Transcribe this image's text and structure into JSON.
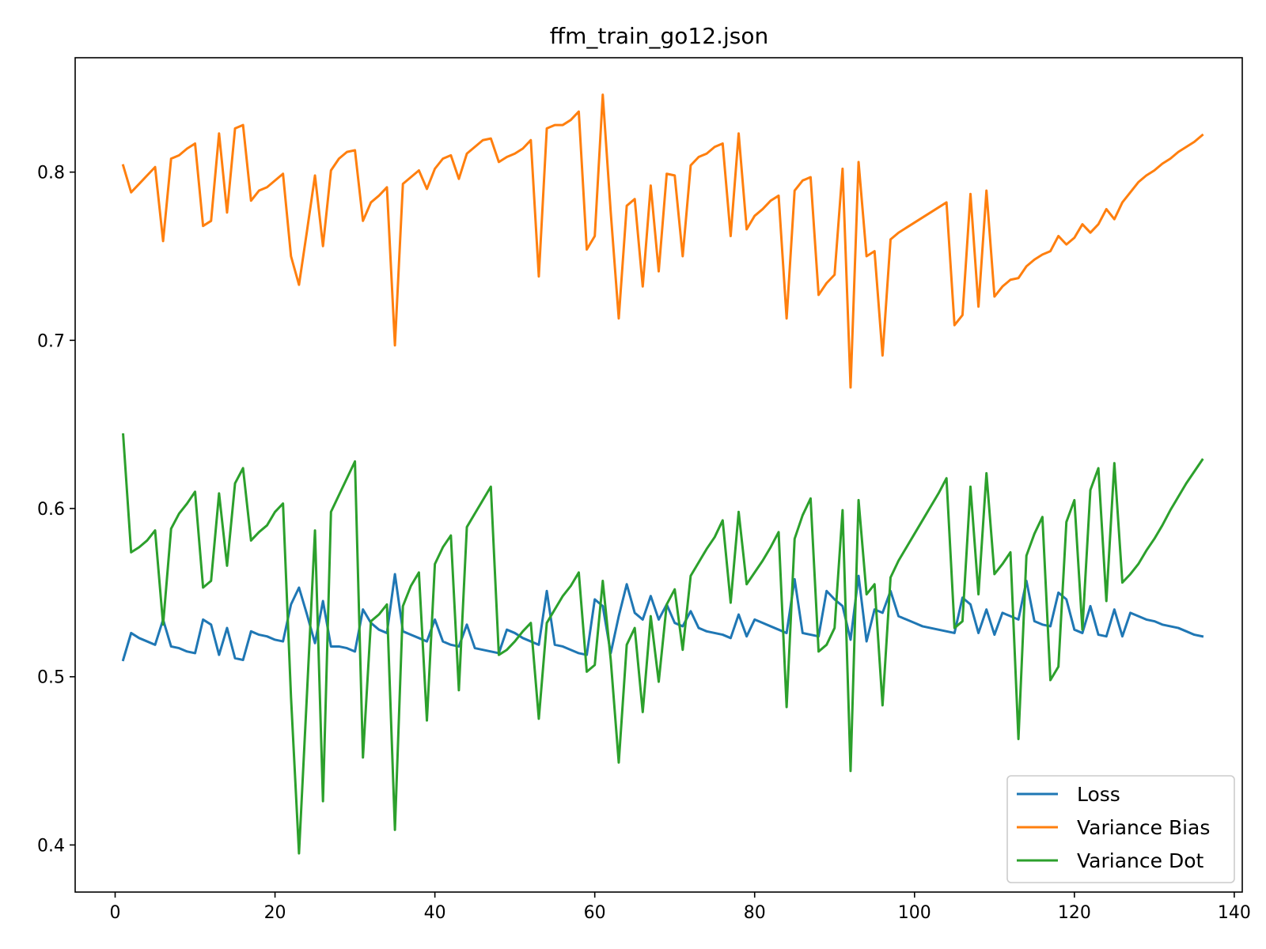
{
  "chart_data": {
    "type": "line",
    "title": "ffm_train_go12.json",
    "xlabel": "",
    "ylabel": "",
    "xlim": [
      -5,
      141
    ],
    "ylim": [
      0.372,
      0.868
    ],
    "xticks": [
      0,
      20,
      40,
      60,
      80,
      100,
      120,
      140
    ],
    "yticks": [
      0.4,
      0.5,
      0.6,
      0.7,
      0.8
    ],
    "x_start": 1,
    "x_step": 1,
    "grid": false,
    "legend_position": "lower right",
    "series": [
      {
        "name": "Loss",
        "color": "#1f77b4",
        "values": [
          0.51,
          0.526,
          0.523,
          0.521,
          0.519,
          0.534,
          0.518,
          0.517,
          0.515,
          0.514,
          0.534,
          0.531,
          0.513,
          0.529,
          0.511,
          0.51,
          0.527,
          0.525,
          0.524,
          0.522,
          0.521,
          0.543,
          0.553,
          0.537,
          0.52,
          0.545,
          0.518,
          0.518,
          0.517,
          0.515,
          0.54,
          0.532,
          0.528,
          0.526,
          0.561,
          0.527,
          0.525,
          0.523,
          0.521,
          0.534,
          0.521,
          0.519,
          0.518,
          0.531,
          0.517,
          0.516,
          0.515,
          0.514,
          0.528,
          0.526,
          0.523,
          0.521,
          0.519,
          0.551,
          0.519,
          0.518,
          0.516,
          0.514,
          0.513,
          0.546,
          0.542,
          0.514,
          0.536,
          0.555,
          0.538,
          0.534,
          0.548,
          0.534,
          0.543,
          0.532,
          0.53,
          0.539,
          0.529,
          0.527,
          0.526,
          0.525,
          0.523,
          0.537,
          0.524,
          0.534,
          0.532,
          0.53,
          0.528,
          0.526,
          0.558,
          0.526,
          0.525,
          0.524,
          0.551,
          0.546,
          0.542,
          0.522,
          0.56,
          0.521,
          0.54,
          0.538,
          0.551,
          0.536,
          0.534,
          0.532,
          0.53,
          0.529,
          0.528,
          0.527,
          0.526,
          0.547,
          0.543,
          0.526,
          0.54,
          0.525,
          0.538,
          0.536,
          0.534,
          0.557,
          0.533,
          0.531,
          0.53,
          0.55,
          0.546,
          0.528,
          0.526,
          0.542,
          0.525,
          0.524,
          0.54,
          0.524,
          0.538,
          0.536,
          0.534,
          0.533,
          0.531,
          0.53,
          0.529,
          0.527,
          0.525,
          0.524
        ]
      },
      {
        "name": "Variance Bias",
        "color": "#ff7f0e",
        "values": [
          0.804,
          0.788,
          0.793,
          0.798,
          0.803,
          0.759,
          0.808,
          0.81,
          0.814,
          0.817,
          0.768,
          0.771,
          0.823,
          0.776,
          0.826,
          0.828,
          0.783,
          0.789,
          0.791,
          0.795,
          0.799,
          0.75,
          0.733,
          0.765,
          0.798,
          0.756,
          0.801,
          0.808,
          0.812,
          0.813,
          0.771,
          0.782,
          0.786,
          0.791,
          0.697,
          0.793,
          0.797,
          0.801,
          0.79,
          0.802,
          0.808,
          0.81,
          0.796,
          0.811,
          0.815,
          0.819,
          0.82,
          0.806,
          0.809,
          0.811,
          0.814,
          0.819,
          0.738,
          0.826,
          0.828,
          0.828,
          0.831,
          0.836,
          0.754,
          0.762,
          0.846,
          0.776,
          0.713,
          0.78,
          0.784,
          0.732,
          0.792,
          0.741,
          0.799,
          0.798,
          0.75,
          0.804,
          0.809,
          0.811,
          0.815,
          0.817,
          0.762,
          0.823,
          0.766,
          0.774,
          0.778,
          0.783,
          0.786,
          0.713,
          0.789,
          0.795,
          0.797,
          0.727,
          0.734,
          0.739,
          0.802,
          0.672,
          0.806,
          0.75,
          0.753,
          0.691,
          0.76,
          0.764,
          0.767,
          0.77,
          0.773,
          0.776,
          0.779,
          0.782,
          0.709,
          0.715,
          0.787,
          0.72,
          0.789,
          0.726,
          0.732,
          0.736,
          0.737,
          0.744,
          0.748,
          0.751,
          0.753,
          0.762,
          0.757,
          0.761,
          0.769,
          0.764,
          0.769,
          0.778,
          0.772,
          0.782,
          0.788,
          0.794,
          0.798,
          0.801,
          0.805,
          0.808,
          0.812,
          0.815,
          0.818,
          0.822
        ]
      },
      {
        "name": "Variance Dot",
        "color": "#2ca02c",
        "values": [
          0.644,
          0.574,
          0.577,
          0.581,
          0.587,
          0.531,
          0.588,
          0.597,
          0.603,
          0.61,
          0.553,
          0.557,
          0.609,
          0.566,
          0.615,
          0.624,
          0.581,
          0.586,
          0.59,
          0.598,
          0.603,
          0.488,
          0.395,
          0.49,
          0.587,
          0.426,
          0.598,
          0.608,
          0.618,
          0.628,
          0.452,
          0.533,
          0.537,
          0.543,
          0.409,
          0.542,
          0.554,
          0.562,
          0.474,
          0.567,
          0.577,
          0.584,
          0.492,
          0.589,
          0.597,
          0.605,
          0.613,
          0.513,
          0.516,
          0.521,
          0.527,
          0.532,
          0.475,
          0.532,
          0.54,
          0.548,
          0.554,
          0.562,
          0.503,
          0.507,
          0.557,
          0.51,
          0.449,
          0.519,
          0.529,
          0.479,
          0.536,
          0.497,
          0.543,
          0.552,
          0.516,
          0.56,
          0.568,
          0.576,
          0.583,
          0.593,
          0.544,
          0.598,
          0.555,
          0.562,
          0.569,
          0.577,
          0.586,
          0.482,
          0.582,
          0.596,
          0.606,
          0.515,
          0.519,
          0.529,
          0.599,
          0.444,
          0.605,
          0.549,
          0.555,
          0.483,
          0.559,
          0.569,
          0.577,
          0.585,
          0.593,
          0.601,
          0.609,
          0.618,
          0.529,
          0.533,
          0.613,
          0.549,
          0.621,
          0.561,
          0.567,
          0.574,
          0.463,
          0.572,
          0.585,
          0.595,
          0.498,
          0.506,
          0.592,
          0.605,
          0.528,
          0.611,
          0.624,
          0.545,
          0.627,
          0.556,
          0.561,
          0.567,
          0.575,
          0.582,
          0.59,
          0.599,
          0.607,
          0.615,
          0.622,
          0.629
        ]
      }
    ]
  }
}
